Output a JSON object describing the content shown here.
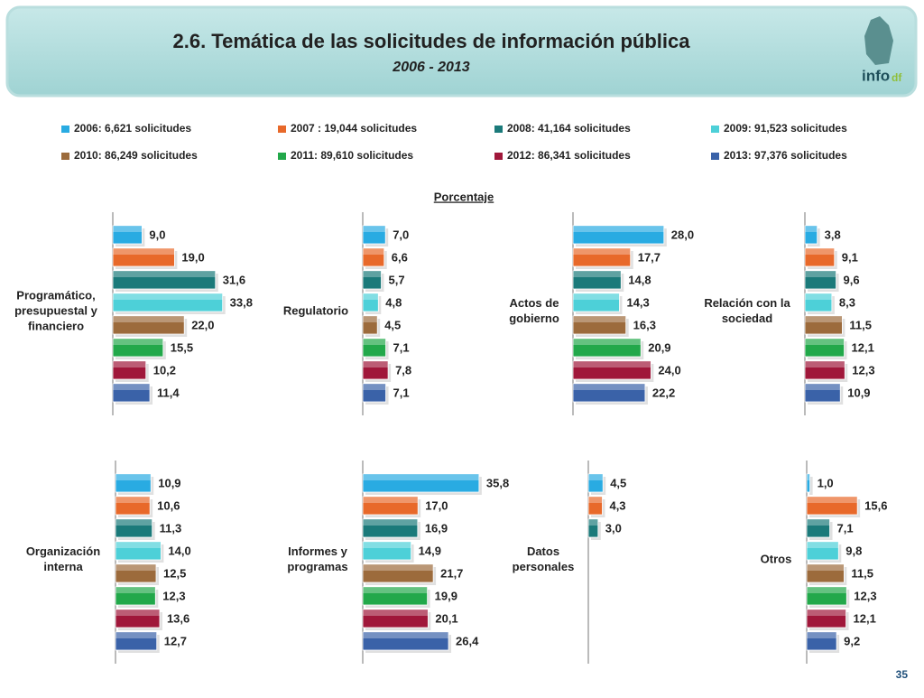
{
  "title": "2.6. Temática de las solicitudes de información pública",
  "subtitle": "2006 - 2013",
  "logo": [
    "info",
    "df"
  ],
  "axis_label": "Porcentaje",
  "page_number": "35",
  "legend": [
    {
      "name": "2006: 6,621 solicitudes",
      "color": "#29abe2"
    },
    {
      "name": "2007 : 19,044 solicitudes",
      "color": "#e8692a"
    },
    {
      "name": "2008: 41,164 solicitudes",
      "color": "#1b7a7a"
    },
    {
      "name": "2009: 91,523 solicitudes",
      "color": "#4dd0d8"
    },
    {
      "name": "2010: 86,249 solicitudes",
      "color": "#9c6b3c"
    },
    {
      "name": "2011: 89,610 solicitudes",
      "color": "#22a84a"
    },
    {
      "name": "2012: 86,341 solicitudes",
      "color": "#a0173a"
    },
    {
      "name": "2013: 97,376 solicitudes",
      "color": "#3a62a8"
    }
  ],
  "chart_data": [
    {
      "type": "bar",
      "label": [
        "Programático,",
        "presupuestal y",
        "financiero"
      ],
      "values": [
        9.0,
        19.0,
        31.6,
        33.8,
        22.0,
        15.5,
        10.2,
        11.4
      ],
      "value_labels": [
        "9,0",
        "19,0",
        "31,6",
        "33,8",
        "22,0",
        "15,5",
        "10,2",
        "11,4"
      ]
    },
    {
      "type": "bar",
      "label": [
        "Regulatorio"
      ],
      "values": [
        7.0,
        6.6,
        5.7,
        4.8,
        4.5,
        7.1,
        7.8,
        7.1
      ],
      "value_labels": [
        "7,0",
        "6,6",
        "5,7",
        "4,8",
        "4,5",
        "7,1",
        "7,8",
        "7,1"
      ]
    },
    {
      "type": "bar",
      "label": [
        "Actos de",
        "gobierno"
      ],
      "values": [
        28.0,
        17.7,
        14.8,
        14.3,
        16.3,
        20.9,
        24.0,
        22.2
      ],
      "value_labels": [
        "28,0",
        "17,7",
        "14,8",
        "14,3",
        "16,3",
        "20,9",
        "24,0",
        "22,2"
      ]
    },
    {
      "type": "bar",
      "label": [
        "Relación con la",
        "sociedad"
      ],
      "values": [
        3.8,
        9.1,
        9.6,
        8.3,
        11.5,
        12.1,
        12.3,
        10.9
      ],
      "value_labels": [
        "3,8",
        "9,1",
        "9,6",
        "8,3",
        "11,5",
        "12,1",
        "12,3",
        "10,9"
      ]
    },
    {
      "type": "bar",
      "label": [
        "Organización",
        "interna"
      ],
      "values": [
        10.9,
        10.6,
        11.3,
        14.0,
        12.5,
        12.3,
        13.6,
        12.7
      ],
      "value_labels": [
        "10,9",
        "10,6",
        "11,3",
        "14,0",
        "12,5",
        "12,3",
        "13,6",
        "12,7"
      ]
    },
    {
      "type": "bar",
      "label": [
        "Informes y",
        "programas"
      ],
      "values": [
        35.8,
        17.0,
        16.9,
        14.9,
        21.7,
        19.9,
        20.1,
        26.4
      ],
      "value_labels": [
        "35,8",
        "17,0",
        "16,9",
        "14,9",
        "21,7",
        "19,9",
        "20,1",
        "26,4"
      ]
    },
    {
      "type": "bar",
      "label": [
        "Datos",
        "personales"
      ],
      "values": [
        4.5,
        4.3,
        3.0
      ],
      "value_labels": [
        "4,5",
        "4,3",
        "3,0"
      ]
    },
    {
      "type": "bar",
      "label": [
        "Otros"
      ],
      "values": [
        1.0,
        15.6,
        7.1,
        9.8,
        11.5,
        12.3,
        12.1,
        9.2
      ],
      "value_labels": [
        "1,0",
        "15,6",
        "7,1",
        "9,8",
        "11,5",
        "12,3",
        "12,1",
        "9,2"
      ]
    }
  ]
}
